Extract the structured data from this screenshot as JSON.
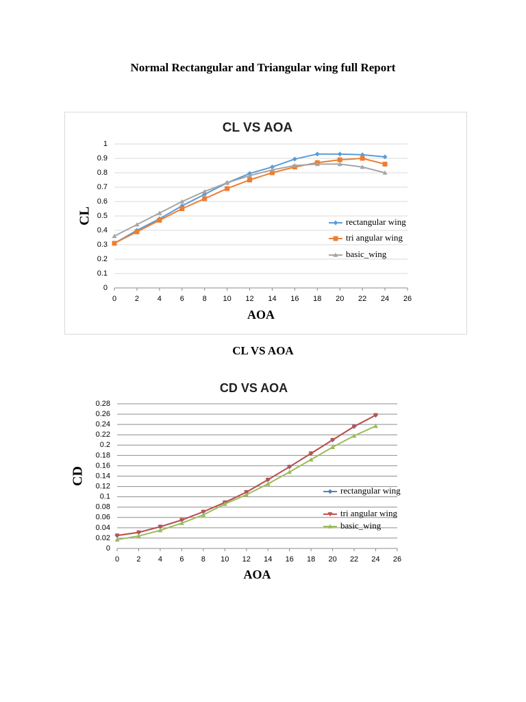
{
  "title": "Normal Rectangular and Triangular wing full Report",
  "caption": "CL VS AOA",
  "chart_data": [
    {
      "type": "line",
      "title": "CL VS AOA",
      "x_label": "AOA",
      "y_label": "CL",
      "x": [
        0,
        2,
        4,
        6,
        8,
        10,
        12,
        14,
        16,
        18,
        20,
        22,
        24
      ],
      "xlim": [
        0,
        26
      ],
      "xticks": [
        0,
        2,
        4,
        6,
        8,
        10,
        12,
        14,
        16,
        18,
        20,
        22,
        24,
        26
      ],
      "ylim": [
        0,
        1
      ],
      "yticks": [
        0,
        0.1,
        0.2,
        0.3,
        0.4,
        0.5,
        0.6,
        0.7,
        0.8,
        0.9,
        1
      ],
      "grid": true,
      "legend": "right",
      "series": [
        {
          "name": "rectangular wing",
          "color": "#5b9bd5",
          "marker": "diamond",
          "values": [
            0.31,
            0.4,
            0.48,
            0.57,
            0.65,
            0.73,
            0.795,
            0.84,
            0.895,
            0.93,
            0.93,
            0.925,
            0.91
          ]
        },
        {
          "name": "tri angular wing",
          "color": "#ed7d31",
          "marker": "square",
          "values": [
            0.31,
            0.39,
            0.47,
            0.55,
            0.62,
            0.69,
            0.75,
            0.8,
            0.84,
            0.87,
            0.89,
            0.9,
            0.86
          ]
        },
        {
          "name": "basic_wing",
          "color": "#a5a5a5",
          "marker": "triangle",
          "values": [
            0.36,
            0.44,
            0.52,
            0.6,
            0.67,
            0.73,
            0.78,
            0.82,
            0.85,
            0.86,
            0.86,
            0.84,
            0.8
          ]
        }
      ]
    },
    {
      "type": "line",
      "title": "CD VS AOA",
      "x_label": "AOA",
      "y_label": "CD",
      "x": [
        0,
        2,
        4,
        6,
        8,
        10,
        12,
        14,
        16,
        18,
        20,
        22,
        24
      ],
      "xlim": [
        0,
        26
      ],
      "xticks": [
        0,
        2,
        4,
        6,
        8,
        10,
        12,
        14,
        16,
        18,
        20,
        22,
        24,
        26
      ],
      "ylim": [
        0,
        0.28
      ],
      "yticks": [
        0,
        0.02,
        0.04,
        0.06,
        0.08,
        0.1,
        0.12,
        0.14,
        0.16,
        0.18,
        0.2,
        0.22,
        0.24,
        0.26,
        0.28
      ],
      "grid": true,
      "legend": "right",
      "series": [
        {
          "name": "rectangular wing",
          "color": "#4f81bd",
          "marker": "diamond",
          "values": [
            0.025,
            0.031,
            0.042,
            0.055,
            0.071,
            0.089,
            0.109,
            0.133,
            0.158,
            0.184,
            0.21,
            0.236,
            0.258
          ]
        },
        {
          "name": "tri angular wing",
          "color": "#c0504d",
          "marker": "triangle-down",
          "values": [
            0.025,
            0.031,
            0.042,
            0.055,
            0.071,
            0.089,
            0.109,
            0.133,
            0.158,
            0.184,
            0.21,
            0.236,
            0.258
          ]
        },
        {
          "name": "basic_wing",
          "color": "#9bbb59",
          "marker": "triangle",
          "values": [
            0.017,
            0.024,
            0.035,
            0.049,
            0.065,
            0.086,
            0.104,
            0.125,
            0.148,
            0.172,
            0.196,
            0.218,
            0.237
          ]
        }
      ]
    }
  ]
}
